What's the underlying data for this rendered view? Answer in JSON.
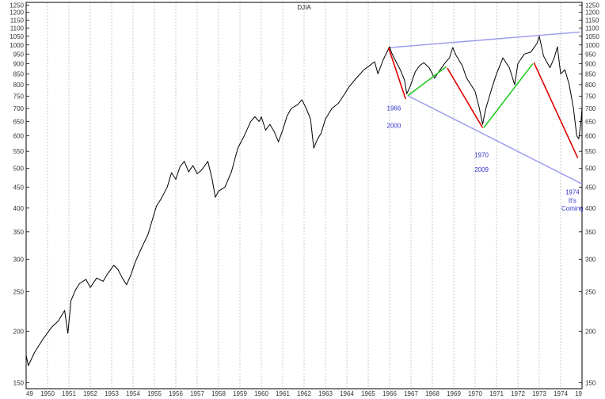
{
  "chart_data": {
    "type": "line",
    "title": "DJIA",
    "log_scale": true,
    "grid": "vertical dashed",
    "ylim": [
      145,
      1270
    ],
    "xlim": [
      1949.0,
      1975.0
    ],
    "y_ticks": [
      1250,
      1200,
      1150,
      1100,
      1050,
      1000,
      950,
      900,
      850,
      800,
      750,
      700,
      650,
      600,
      550,
      500,
      450,
      400,
      350,
      300,
      250,
      200,
      150
    ],
    "x_tick_labels": [
      {
        "year": 1949,
        "label": "49"
      },
      {
        "year": 1950,
        "label": "1950"
      },
      {
        "year": 1951,
        "label": "1951"
      },
      {
        "year": 1952,
        "label": "1952"
      },
      {
        "year": 1953,
        "label": "1953"
      },
      {
        "year": 1954,
        "label": "1954"
      },
      {
        "year": 1955,
        "label": "1955"
      },
      {
        "year": 1956,
        "label": "1956"
      },
      {
        "year": 1957,
        "label": "1957"
      },
      {
        "year": 1958,
        "label": "1958"
      },
      {
        "year": 1959,
        "label": "1959"
      },
      {
        "year": 1960,
        "label": "1960"
      },
      {
        "year": 1961,
        "label": "1961"
      },
      {
        "year": 1962,
        "label": "1962"
      },
      {
        "year": 1963,
        "label": "1963"
      },
      {
        "year": 1964,
        "label": "1964"
      },
      {
        "year": 1965,
        "label": "1965"
      },
      {
        "year": 1966,
        "label": "1966"
      },
      {
        "year": 1967,
        "label": "1967"
      },
      {
        "year": 1968,
        "label": "1968"
      },
      {
        "year": 1969,
        "label": "1969"
      },
      {
        "year": 1970,
        "label": "1970"
      },
      {
        "year": 1971,
        "label": "1971"
      },
      {
        "year": 1972,
        "label": "1972"
      },
      {
        "year": 1973,
        "label": "1973"
      },
      {
        "year": 1974,
        "label": "1974"
      },
      {
        "year": 1975,
        "label": "19"
      }
    ],
    "series": [
      {
        "color": "#000000",
        "points": [
          [
            1949.0,
            175
          ],
          [
            1949.1,
            165
          ],
          [
            1949.4,
            178
          ],
          [
            1949.8,
            192
          ],
          [
            1950.2,
            205
          ],
          [
            1950.5,
            212
          ],
          [
            1950.8,
            225
          ],
          [
            1950.95,
            198
          ],
          [
            1951.1,
            238
          ],
          [
            1951.3,
            252
          ],
          [
            1951.5,
            262
          ],
          [
            1951.8,
            268
          ],
          [
            1952.0,
            256
          ],
          [
            1952.3,
            270
          ],
          [
            1952.6,
            265
          ],
          [
            1952.8,
            276
          ],
          [
            1953.1,
            290
          ],
          [
            1953.3,
            283
          ],
          [
            1953.5,
            270
          ],
          [
            1953.7,
            260
          ],
          [
            1953.9,
            275
          ],
          [
            1954.1,
            295
          ],
          [
            1954.4,
            320
          ],
          [
            1954.7,
            345
          ],
          [
            1954.95,
            382
          ],
          [
            1955.1,
            405
          ],
          [
            1955.3,
            420
          ],
          [
            1955.6,
            450
          ],
          [
            1955.8,
            488
          ],
          [
            1956.0,
            470
          ],
          [
            1956.2,
            505
          ],
          [
            1956.4,
            520
          ],
          [
            1956.6,
            490
          ],
          [
            1956.8,
            508
          ],
          [
            1957.0,
            485
          ],
          [
            1957.2,
            495
          ],
          [
            1957.5,
            520
          ],
          [
            1957.7,
            470
          ],
          [
            1957.85,
            425
          ],
          [
            1958.0,
            440
          ],
          [
            1958.3,
            450
          ],
          [
            1958.6,
            490
          ],
          [
            1958.9,
            560
          ],
          [
            1959.2,
            600
          ],
          [
            1959.5,
            650
          ],
          [
            1959.7,
            668
          ],
          [
            1959.9,
            650
          ],
          [
            1960.0,
            668
          ],
          [
            1960.2,
            620
          ],
          [
            1960.4,
            640
          ],
          [
            1960.6,
            615
          ],
          [
            1960.8,
            580
          ],
          [
            1961.0,
            620
          ],
          [
            1961.2,
            670
          ],
          [
            1961.4,
            700
          ],
          [
            1961.7,
            715
          ],
          [
            1961.9,
            735
          ],
          [
            1962.1,
            700
          ],
          [
            1962.3,
            660
          ],
          [
            1962.45,
            560
          ],
          [
            1962.6,
            585
          ],
          [
            1962.8,
            610
          ],
          [
            1963.0,
            660
          ],
          [
            1963.3,
            700
          ],
          [
            1963.6,
            720
          ],
          [
            1963.9,
            760
          ],
          [
            1964.1,
            790
          ],
          [
            1964.4,
            825
          ],
          [
            1964.8,
            870
          ],
          [
            1965.0,
            885
          ],
          [
            1965.3,
            910
          ],
          [
            1965.45,
            850
          ],
          [
            1965.7,
            920
          ],
          [
            1966.0,
            990
          ],
          [
            1966.1,
            955
          ],
          [
            1966.3,
            910
          ],
          [
            1966.5,
            870
          ],
          [
            1966.7,
            820
          ],
          [
            1966.8,
            760
          ],
          [
            1966.95,
            790
          ],
          [
            1967.2,
            860
          ],
          [
            1967.4,
            890
          ],
          [
            1967.6,
            905
          ],
          [
            1967.85,
            880
          ],
          [
            1968.1,
            830
          ],
          [
            1968.3,
            860
          ],
          [
            1968.6,
            905
          ],
          [
            1968.8,
            930
          ],
          [
            1968.95,
            985
          ],
          [
            1969.1,
            945
          ],
          [
            1969.4,
            890
          ],
          [
            1969.6,
            830
          ],
          [
            1969.8,
            800
          ],
          [
            1970.0,
            770
          ],
          [
            1970.2,
            700
          ],
          [
            1970.35,
            640
          ],
          [
            1970.5,
            700
          ],
          [
            1970.8,
            790
          ],
          [
            1971.0,
            850
          ],
          [
            1971.3,
            930
          ],
          [
            1971.6,
            880
          ],
          [
            1971.85,
            800
          ],
          [
            1972.0,
            900
          ],
          [
            1972.3,
            950
          ],
          [
            1972.6,
            960
          ],
          [
            1972.9,
            1010
          ],
          [
            1973.0,
            1050
          ],
          [
            1973.2,
            940
          ],
          [
            1973.5,
            880
          ],
          [
            1973.7,
            930
          ],
          [
            1973.85,
            990
          ],
          [
            1974.0,
            850
          ],
          [
            1974.2,
            870
          ],
          [
            1974.4,
            800
          ],
          [
            1974.6,
            700
          ],
          [
            1974.75,
            600
          ],
          [
            1974.85,
            590
          ],
          [
            1974.95,
            650
          ],
          [
            1975.0,
            700
          ]
        ]
      }
    ],
    "trend_lines": [
      {
        "name": "upper-trendline",
        "color": "#9999ee",
        "from": [
          1966.0,
          985
        ],
        "to": [
          1974.9,
          1075
        ]
      },
      {
        "name": "lower-trendline",
        "color": "#9999ee",
        "from": [
          1966.85,
          752
        ],
        "to": [
          1975.0,
          458
        ]
      }
    ],
    "swing_lines": [
      {
        "color": "#e00000",
        "from": [
          1965.95,
          985
        ],
        "to": [
          1966.75,
          738
        ]
      },
      {
        "color": "#22cc22",
        "from": [
          1966.85,
          752
        ],
        "to": [
          1968.65,
          885
        ]
      },
      {
        "color": "#e00000",
        "from": [
          1968.7,
          878
        ],
        "to": [
          1970.35,
          628
        ]
      },
      {
        "color": "#22cc22",
        "from": [
          1970.4,
          628
        ],
        "to": [
          1972.7,
          900
        ]
      },
      {
        "color": "#e00000",
        "from": [
          1972.75,
          905
        ],
        "to": [
          1974.8,
          530
        ]
      }
    ],
    "annotations": [
      {
        "text": "1966",
        "x": 1966.2,
        "y": 692
      },
      {
        "text": "2000",
        "x": 1966.2,
        "y": 628
      },
      {
        "text": "1970",
        "x": 1970.3,
        "y": 532
      },
      {
        "text": "2009",
        "x": 1970.3,
        "y": 490
      },
      {
        "text": "1974",
        "x": 1974.55,
        "y": 432
      },
      {
        "text": "It's",
        "x": 1974.55,
        "y": 412
      },
      {
        "text": "Coming",
        "x": 1974.55,
        "y": 394
      }
    ],
    "annotation_color": "#3333cc"
  }
}
